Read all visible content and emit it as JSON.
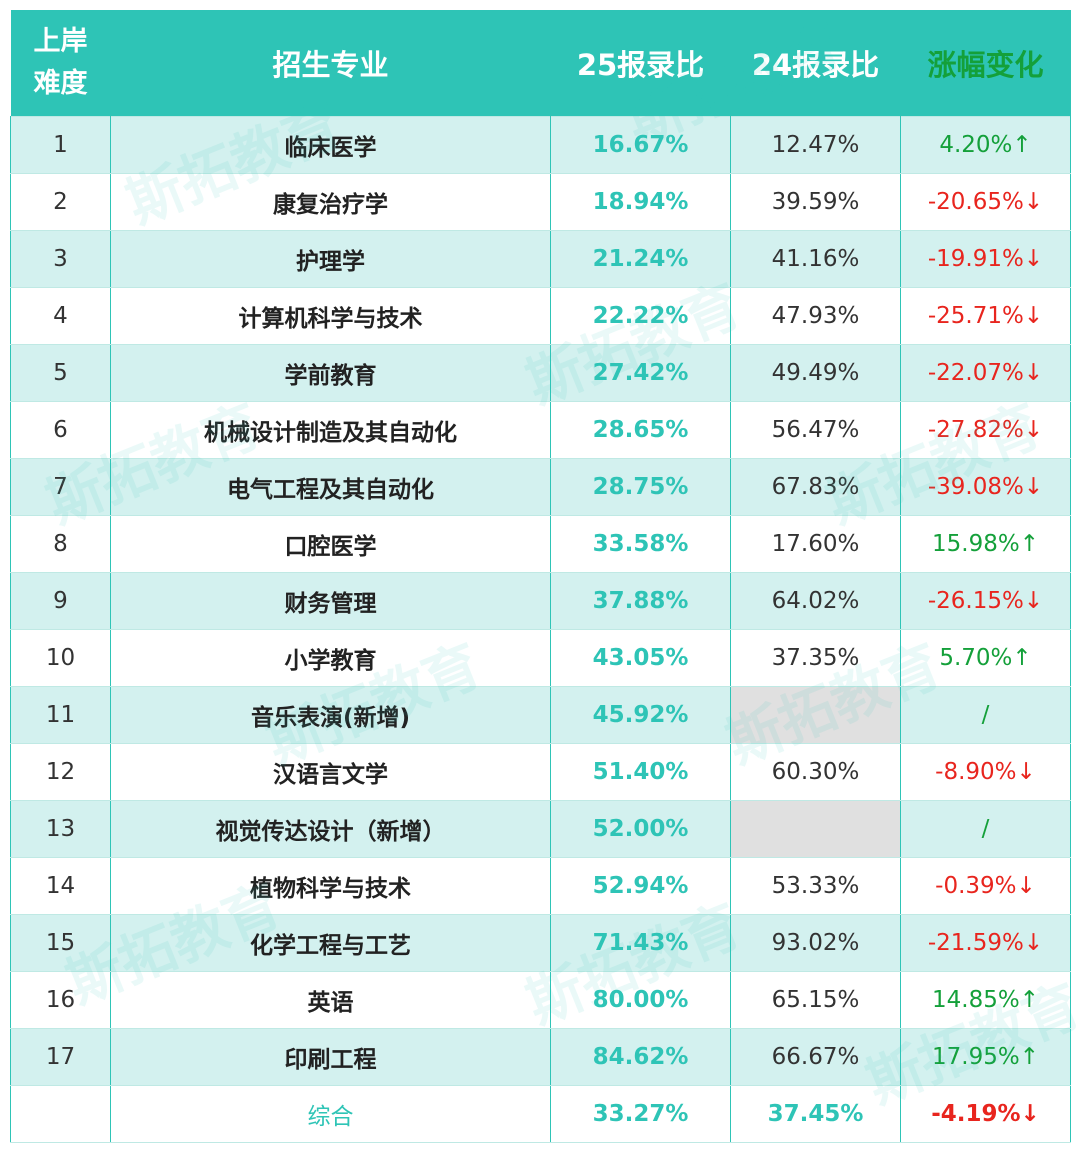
{
  "header": {
    "col1_line1": "上岸",
    "col1_line2": "难度",
    "col2": "招生专业",
    "col3": "25报录比",
    "col4": "24报录比",
    "col5": "涨幅变化"
  },
  "rows": [
    {
      "rank": "1",
      "major": "临床医学",
      "r25": "16.67%",
      "r24": "12.47%",
      "change": "4.20%↑",
      "dir": "up"
    },
    {
      "rank": "2",
      "major": "康复治疗学",
      "r25": "18.94%",
      "r24": "39.59%",
      "change": "-20.65%↓",
      "dir": "down"
    },
    {
      "rank": "3",
      "major": "护理学",
      "r25": "21.24%",
      "r24": "41.16%",
      "change": "-19.91%↓",
      "dir": "down"
    },
    {
      "rank": "4",
      "major": "计算机科学与技术",
      "r25": "22.22%",
      "r24": "47.93%",
      "change": "-25.71%↓",
      "dir": "down"
    },
    {
      "rank": "5",
      "major": "学前教育",
      "r25": "27.42%",
      "r24": "49.49%",
      "change": "-22.07%↓",
      "dir": "down"
    },
    {
      "rank": "6",
      "major": "机械设计制造及其自动化",
      "r25": "28.65%",
      "r24": "56.47%",
      "change": "-27.82%↓",
      "dir": "down"
    },
    {
      "rank": "7",
      "major": "电气工程及其自动化",
      "r25": "28.75%",
      "r24": "67.83%",
      "change": "-39.08%↓",
      "dir": "down"
    },
    {
      "rank": "8",
      "major": "口腔医学",
      "r25": "33.58%",
      "r24": "17.60%",
      "change": "15.98%↑",
      "dir": "up"
    },
    {
      "rank": "9",
      "major": "财务管理",
      "r25": "37.88%",
      "r24": "64.02%",
      "change": "-26.15%↓",
      "dir": "down"
    },
    {
      "rank": "10",
      "major": "小学教育",
      "r25": "43.05%",
      "r24": "37.35%",
      "change": "5.70%↑",
      "dir": "up"
    },
    {
      "rank": "11",
      "major": "音乐表演(新增)",
      "r25": "45.92%",
      "r24": "",
      "change": "/",
      "dir": "slash"
    },
    {
      "rank": "12",
      "major": "汉语言文学",
      "r25": "51.40%",
      "r24": "60.30%",
      "change": "-8.90%↓",
      "dir": "down"
    },
    {
      "rank": "13",
      "major": "视觉传达设计（新增）",
      "r25": "52.00%",
      "r24": "",
      "change": "/",
      "dir": "slash"
    },
    {
      "rank": "14",
      "major": "植物科学与技术",
      "r25": "52.94%",
      "r24": "53.33%",
      "change": "-0.39%↓",
      "dir": "down"
    },
    {
      "rank": "15",
      "major": "化学工程与工艺",
      "r25": "71.43%",
      "r24": "93.02%",
      "change": "-21.59%↓",
      "dir": "down"
    },
    {
      "rank": "16",
      "major": "英语",
      "r25": "80.00%",
      "r24": "65.15%",
      "change": "14.85%↑",
      "dir": "up"
    },
    {
      "rank": "17",
      "major": "印刷工程",
      "r25": "84.62%",
      "r24": "66.67%",
      "change": "17.95%↑",
      "dir": "up"
    }
  ],
  "summary": {
    "rank": "",
    "major": "综合",
    "r25": "33.27%",
    "r24": "37.45%",
    "change": "-4.19%↓",
    "dir": "down"
  },
  "watermark_text": "斯拓教育",
  "colors": {
    "header_bg": "#2ec4b6",
    "row_alt": "#d3f1ef",
    "up": "#14a03a",
    "down": "#e8251e"
  }
}
